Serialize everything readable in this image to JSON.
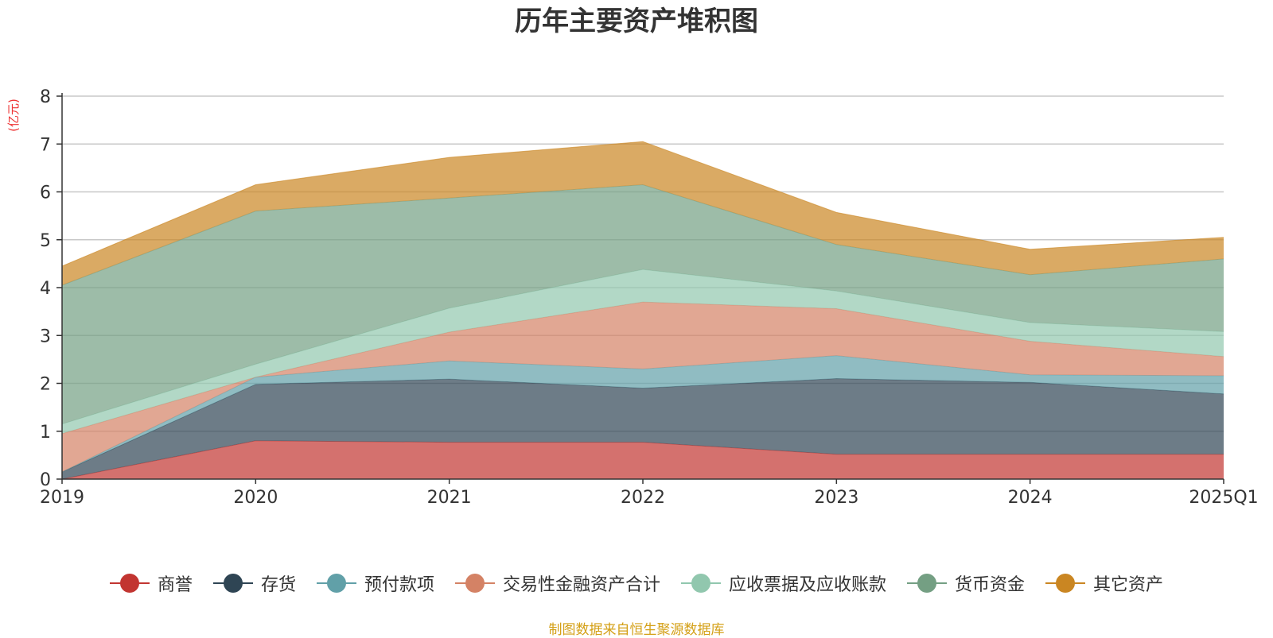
{
  "chart_data": {
    "type": "area",
    "stacked": true,
    "title": "历年主要资产堆积图",
    "ylabel": "(亿元)",
    "xlabel": "",
    "categories": [
      "2019",
      "2020",
      "2021",
      "2022",
      "2023",
      "2024",
      "2025Q1"
    ],
    "ylim": [
      0,
      8
    ],
    "yticks": [
      0,
      1,
      2,
      3,
      4,
      5,
      6,
      7,
      8
    ],
    "grid": true,
    "legend_position": "bottom",
    "series": [
      {
        "name": "商誉",
        "color": "#c23531",
        "values": [
          0.0,
          0.8,
          0.77,
          0.77,
          0.52,
          0.52,
          0.52
        ]
      },
      {
        "name": "存货",
        "color": "#2f4554",
        "values": [
          0.15,
          1.18,
          1.32,
          1.13,
          1.58,
          1.5,
          1.26
        ]
      },
      {
        "name": "预付款项",
        "color": "#61a0a8",
        "values": [
          0.0,
          0.15,
          0.38,
          0.4,
          0.48,
          0.16,
          0.38
        ]
      },
      {
        "name": "交易性金融资产合计",
        "color": "#d48265",
        "values": [
          0.8,
          0.0,
          0.6,
          1.4,
          0.98,
          0.7,
          0.4
        ]
      },
      {
        "name": "应收票据及应收账款",
        "color": "#91c7ae",
        "values": [
          0.2,
          0.27,
          0.5,
          0.68,
          0.37,
          0.39,
          0.52
        ]
      },
      {
        "name": "货币资金",
        "color": "#749f83",
        "values": [
          2.9,
          3.2,
          2.3,
          1.77,
          0.97,
          1.0,
          1.52
        ]
      },
      {
        "name": "其它资产",
        "color": "#ca8622",
        "values": [
          0.4,
          0.55,
          0.85,
          0.9,
          0.67,
          0.53,
          0.45
        ]
      }
    ]
  },
  "source_note": "制图数据来自恒生聚源数据库"
}
